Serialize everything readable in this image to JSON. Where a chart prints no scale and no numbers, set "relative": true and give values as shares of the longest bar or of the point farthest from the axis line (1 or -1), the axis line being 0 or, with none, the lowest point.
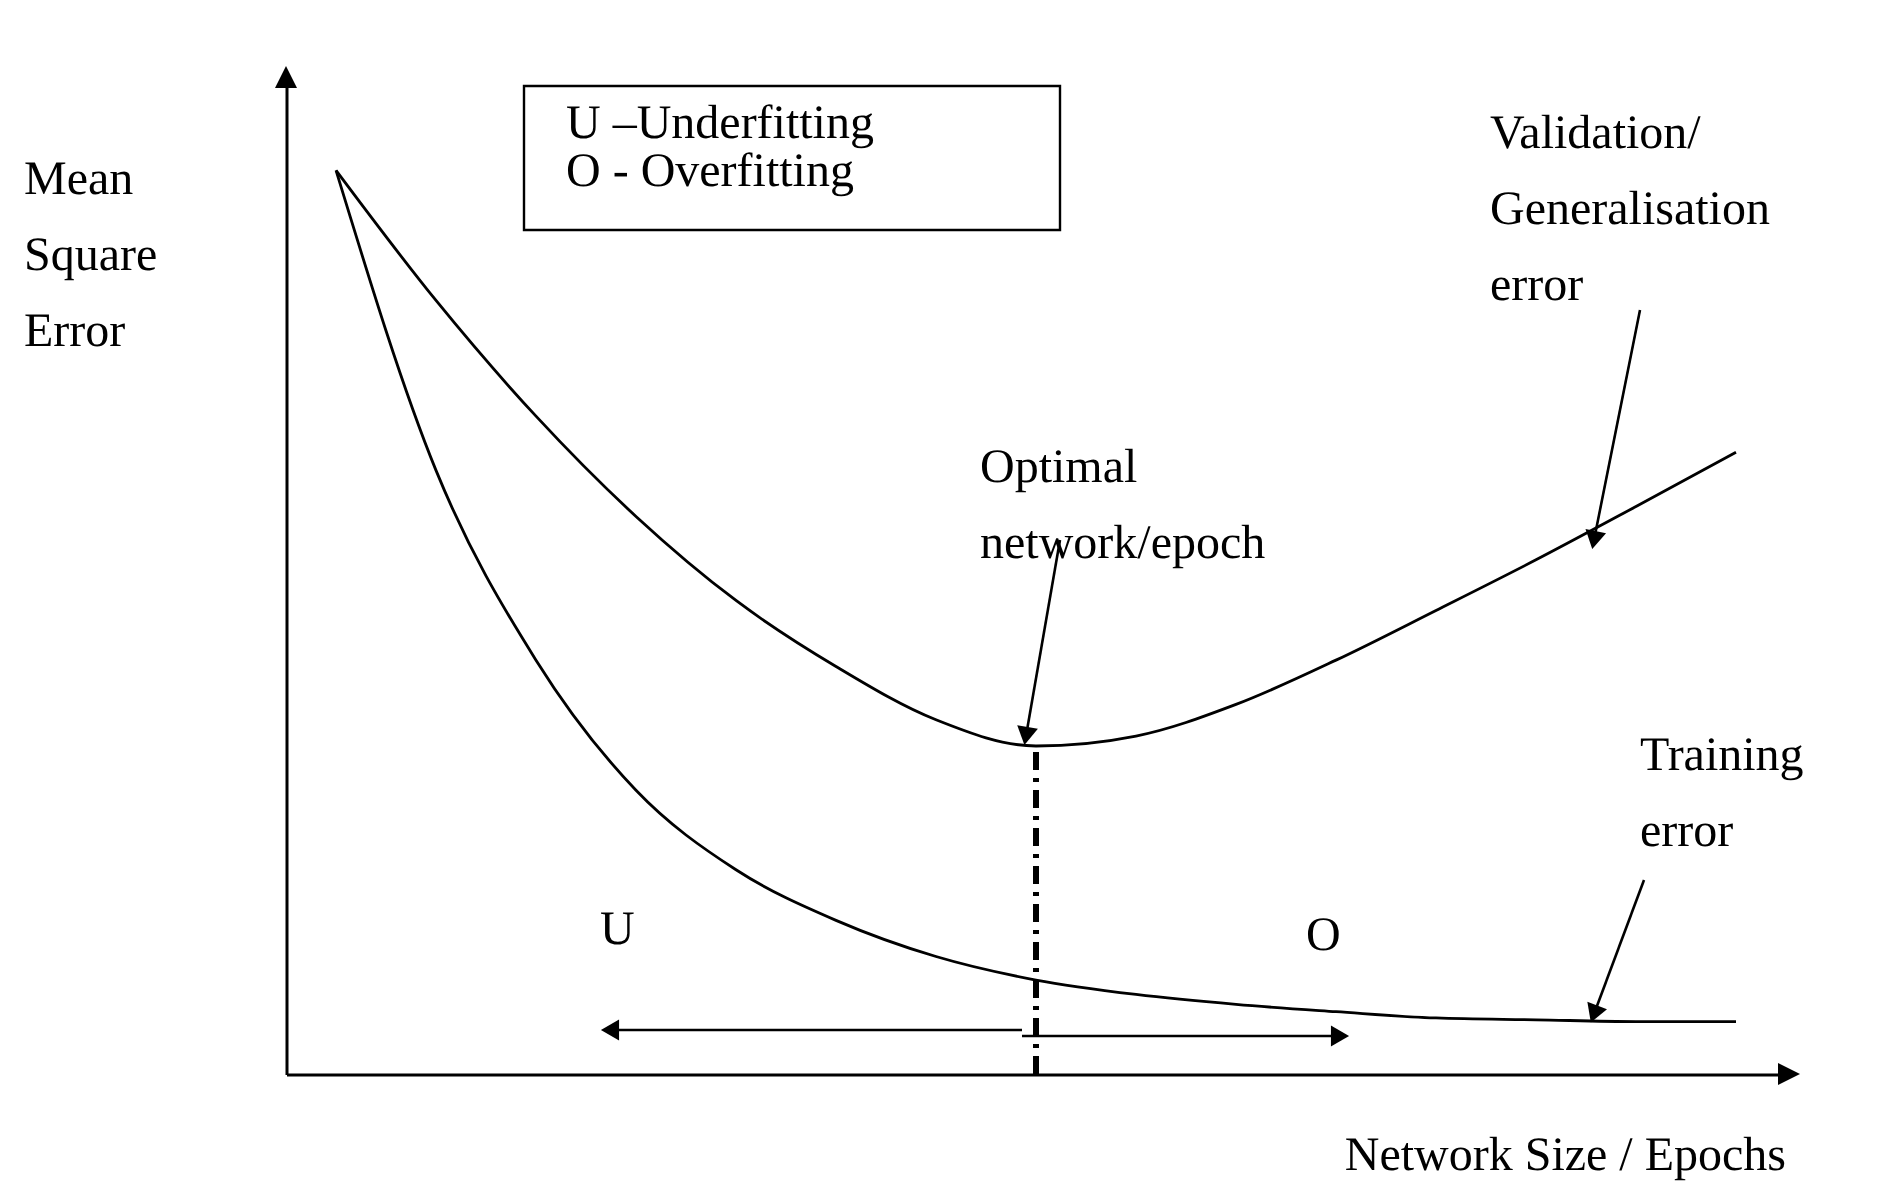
{
  "chart_data": {
    "type": "line",
    "relative": true,
    "xlabel": "Network Size / Epochs",
    "ylabel": "Mean Square Error",
    "categories": [
      null,
      null,
      null,
      null,
      null,
      null,
      null,
      null,
      null,
      null,
      null,
      null,
      null,
      null,
      null
    ],
    "series": [
      {
        "color": "#000000",
        "values": [
          1,
          0.856,
          0.728,
          0.617,
          0.524,
          0.451,
          0.392,
          0.363,
          0.374,
          0.409,
          0.458,
          0.513,
          0.569,
          0.628,
          0.688
        ]
      },
      {
        "color": "#000000",
        "values": [
          1,
          0.668,
          0.458,
          0.314,
          0.226,
          0.17,
          0.13,
          0.104,
          0.088,
          0.077,
          0.069,
          0.062,
          0.06,
          0.058,
          0.058
        ]
      }
    ],
    "annotations": [
      "U –Underfitting",
      "O - Overfitting",
      "U",
      "O",
      "Optimal network/epoch",
      "Validation/ Generalisation error",
      "Training error"
    ]
  }
}
